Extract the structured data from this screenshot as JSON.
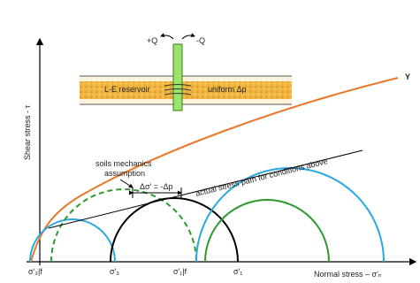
{
  "well": {
    "inflow": "+Q",
    "outflow": "-Q"
  },
  "reservoir": {
    "name": "L-E reservoir",
    "pressure": "uniform Δp"
  },
  "axes": {
    "y_label": "Shear stress - τ",
    "x_label": "Normal stress – σ'ₙ"
  },
  "envelope_label": "Y",
  "annotations": {
    "soils_line1": "soils mechanics",
    "soils_line2": "assumption",
    "delta": "Δσ' = -Δp",
    "stress_path": "actual stress path for conditions above"
  },
  "x_labels": {
    "s3f": "σ'₃|f",
    "s3": "σ'₃",
    "s1f": "σ'₁|f",
    "s1": "σ'₁"
  }
}
